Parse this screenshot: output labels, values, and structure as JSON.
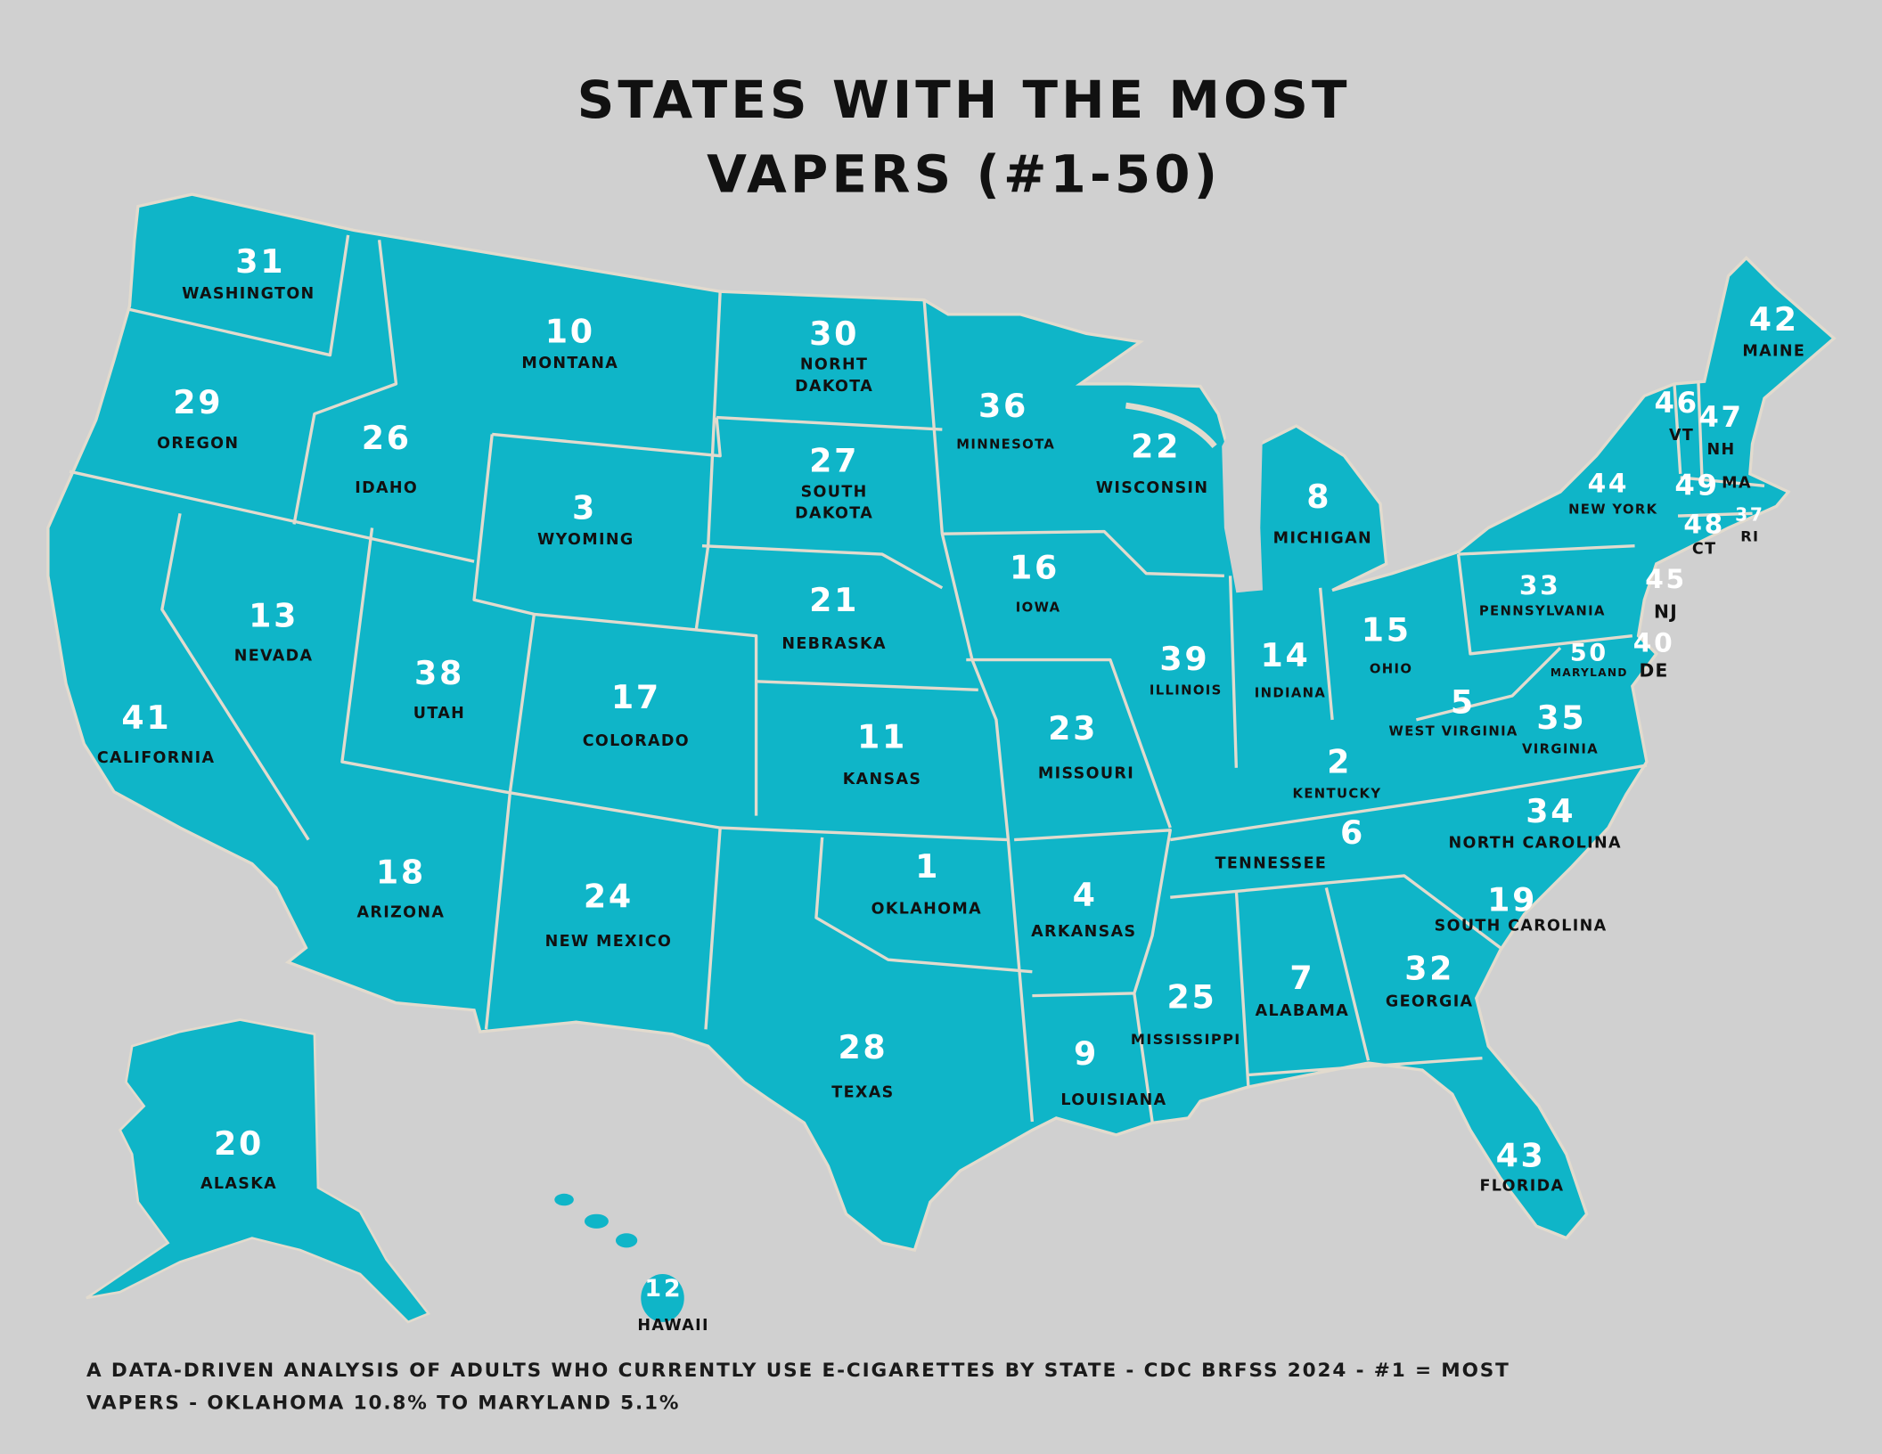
{
  "title": [
    "STATES WITH THE MOST",
    "VAPERS (#1-50)"
  ],
  "states": [
    {
      "rank": 31,
      "label": "WASHINGTON"
    },
    {
      "rank": 10,
      "label": "MONTANA"
    },
    {
      "rank": 30,
      "label": "NORHT DAKOTA"
    },
    {
      "rank": 36,
      "label": "MINNESOTA"
    },
    {
      "rank": 22,
      "label": "WISCONSIN"
    },
    {
      "rank": 8,
      "label": "MICHIGAN"
    },
    {
      "rank": 42,
      "label": "MAINE"
    },
    {
      "rank": 29,
      "label": "OREGON"
    },
    {
      "rank": 26,
      "label": "IDAHO"
    },
    {
      "rank": 3,
      "label": "WYOMING"
    },
    {
      "rank": 27,
      "label": "SOUTH DAKOTA"
    },
    {
      "rank": 16,
      "label": "IOWA"
    },
    {
      "rank": 21,
      "label": "NEBRASKA"
    },
    {
      "rank": 13,
      "label": "NEVADA"
    },
    {
      "rank": 38,
      "label": "UTAH"
    },
    {
      "rank": 17,
      "label": "COLORADO"
    },
    {
      "rank": 11,
      "label": "KANSAS"
    },
    {
      "rank": 23,
      "label": "MISSOURI"
    },
    {
      "rank": 39,
      "label": "ILLINOIS"
    },
    {
      "rank": 14,
      "label": "INDIANA"
    },
    {
      "rank": 15,
      "label": "OHIO"
    },
    {
      "rank": 33,
      "label": "PENNSYLVANIA"
    },
    {
      "rank": 44,
      "label": "NEW YORK"
    },
    {
      "rank": 46,
      "label": "VT"
    },
    {
      "rank": 47,
      "label": "NH"
    },
    {
      "rank": 49,
      "label": "MA"
    },
    {
      "rank": 48,
      "label": "CT"
    },
    {
      "rank": 37,
      "label": "RI"
    },
    {
      "rank": 45,
      "label": "NJ"
    },
    {
      "rank": 50,
      "label": "MARYLAND"
    },
    {
      "rank": 40,
      "label": "DE"
    },
    {
      "rank": 5,
      "label": "WEST VIRGINIA"
    },
    {
      "rank": 35,
      "label": "VIRGINIA"
    },
    {
      "rank": 2,
      "label": "KENTUCKY"
    },
    {
      "rank": 41,
      "label": "CALIFORNIA"
    },
    {
      "rank": 18,
      "label": "ARIZONA"
    },
    {
      "rank": 24,
      "label": "NEW MEXICO"
    },
    {
      "rank": 1,
      "label": "OKLAHOMA"
    },
    {
      "rank": 4,
      "label": "ARKANSAS"
    },
    {
      "rank": 6,
      "label": "TENNESSEE"
    },
    {
      "rank": 34,
      "label": "NORTH CAROLINA"
    },
    {
      "rank": 19,
      "label": "SOUTH CAROLINA"
    },
    {
      "rank": 32,
      "label": "GEORGIA"
    },
    {
      "rank": 7,
      "label": "ALABAMA"
    },
    {
      "rank": 25,
      "label": "MISSISSIPPI"
    },
    {
      "rank": 9,
      "label": "LOUISIANA"
    },
    {
      "rank": 28,
      "label": "TEXAS"
    },
    {
      "rank": 43,
      "label": "FLORIDA"
    },
    {
      "rank": 20,
      "label": "ALASKA"
    },
    {
      "rank": 12,
      "label": "HAWAII"
    }
  ],
  "footnote": [
    "A DATA-DRIVEN ANALYSIS OF ADULTS WHO CURRENTLY USE E-CIGARETTES BY STATE - CDC BRFSS 2024 - #1 = MOST",
    "VAPERS - OKLAHOMA 10.8% TO MARYLAND 5.1%"
  ]
}
